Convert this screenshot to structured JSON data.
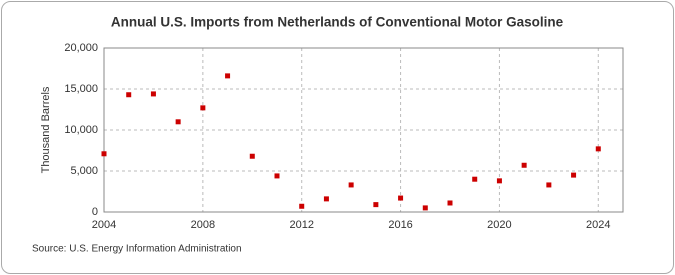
{
  "chart_data": {
    "type": "scatter",
    "title": "Annual U.S. Imports from Netherlands of Conventional Motor Gasoline",
    "y_label": "Thousand Barrels",
    "source": "Source: U.S. Energy Information Administration",
    "x": [
      2004,
      2005,
      2006,
      2007,
      2008,
      2009,
      2010,
      2011,
      2012,
      2013,
      2014,
      2015,
      2016,
      2017,
      2018,
      2019,
      2020,
      2021,
      2022,
      2023,
      2024
    ],
    "series": [
      {
        "name": "Annual U.S. Imports",
        "color": "#cc0000",
        "values": [
          7100,
          14300,
          14400,
          11000,
          12700,
          16600,
          6800,
          4400,
          700,
          1600,
          3300,
          900,
          1700,
          500,
          1100,
          4000,
          3800,
          5700,
          3300,
          4500,
          7700
        ]
      }
    ],
    "xlim": [
      2004,
      2025
    ],
    "xticks": [
      2004,
      2008,
      2012,
      2016,
      2020,
      2024
    ],
    "ylim": [
      0,
      20000
    ],
    "yticks": [
      0,
      {
        "value": 5000,
        "label": "5,000"
      },
      {
        "value": 10000,
        "label": "10,000"
      },
      {
        "value": 15000,
        "label": "15,000"
      },
      {
        "value": 20000,
        "label": "20,000"
      }
    ],
    "grid": true
  }
}
